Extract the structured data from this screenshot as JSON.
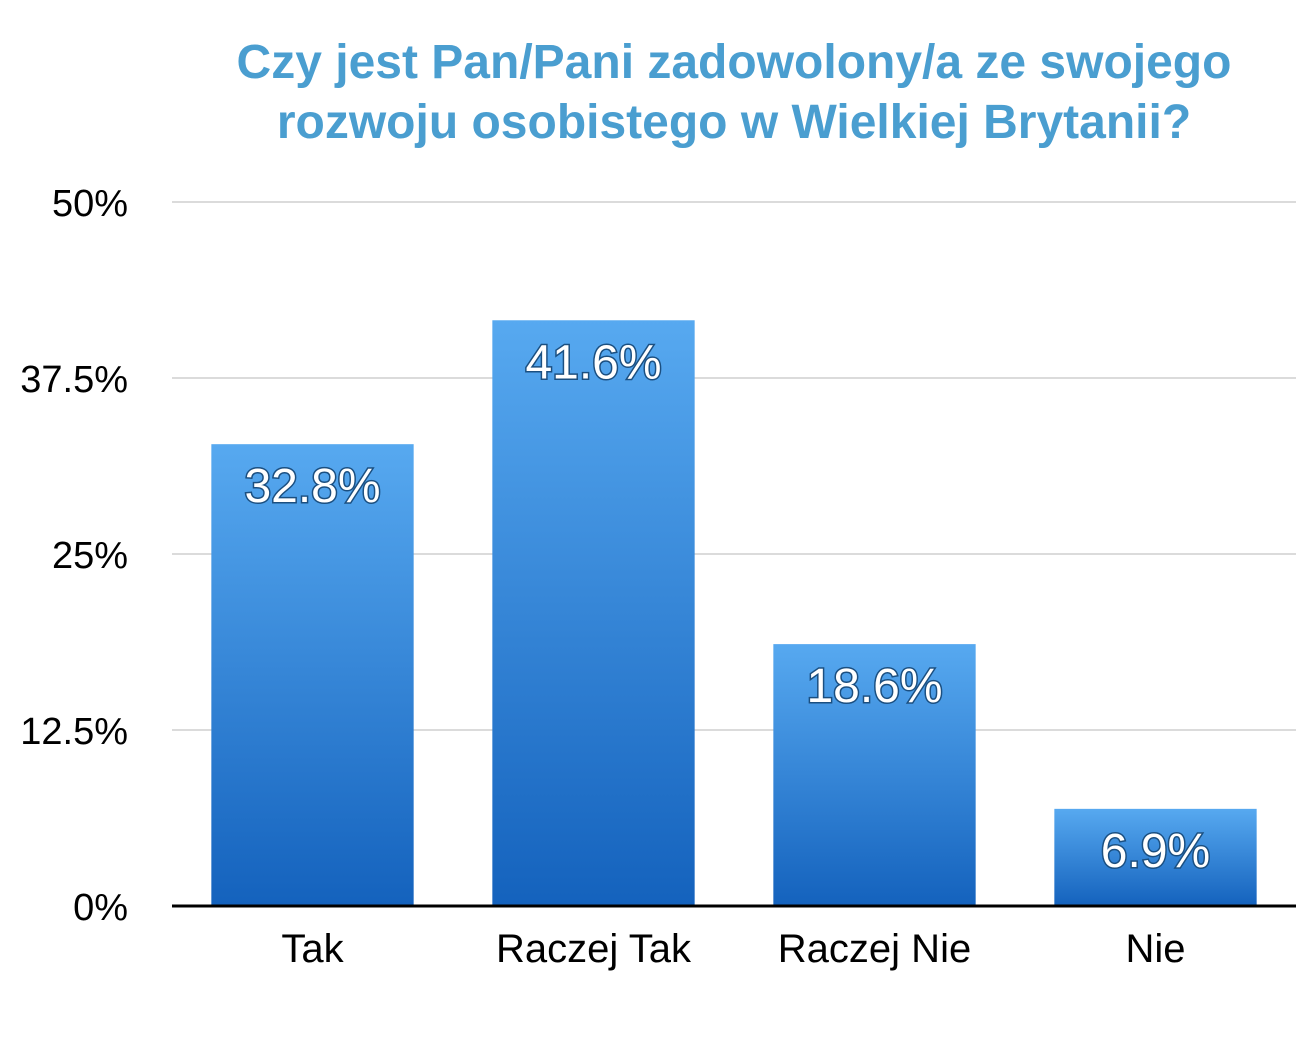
{
  "chart_data": {
    "type": "bar",
    "title_lines": [
      "Czy jest Pan/Pani zadowolony/a ze swojego",
      "rozwoju osobistego w Wielkiej Brytanii?"
    ],
    "categories": [
      "Tak",
      "Raczej Tak",
      "Raczej Nie",
      "Nie"
    ],
    "values": [
      32.8,
      41.6,
      18.6,
      6.9
    ],
    "data_labels": [
      "32.8%",
      "41.6%",
      "18.6%",
      "6.9%"
    ],
    "y_ticks": [
      0,
      12.5,
      25,
      37.5,
      50
    ],
    "y_tick_labels": [
      "0%",
      "12.5%",
      "25%",
      "37.5%",
      "50%"
    ],
    "ylim": [
      0,
      50
    ],
    "grid": true,
    "legend": "none",
    "colors": {
      "title": "#4a9ed0",
      "bar_top": "#57a9f0",
      "bar_bottom": "#1462bd",
      "grid": "#cfcfcf",
      "axis": "#000000"
    }
  }
}
